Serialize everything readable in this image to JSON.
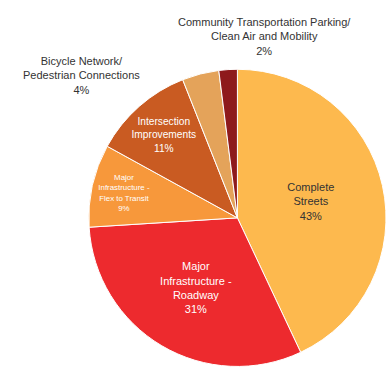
{
  "chart_data": {
    "type": "pie",
    "categories": [
      "Complete\nStreets",
      "Major\nInfrastructure -\nRoadway",
      "Major\nInfrastructure -\nFlex to Transit",
      "Intersection\nImprovements",
      "Bicycle Network/\nPedestrian Connections",
      "Community Transportation Parking/\nClean Air and Mobility"
    ],
    "values": [
      43,
      31,
      9,
      11,
      4,
      2
    ],
    "value_labels": [
      "43%",
      "31%",
      "9%",
      "11%",
      "4%",
      "2%"
    ],
    "colors": [
      "#fdb94e",
      "#ed2a2e",
      "#f7983b",
      "#c95b22",
      "#e4a35a",
      "#8e1a1c"
    ],
    "data_labels": true
  }
}
